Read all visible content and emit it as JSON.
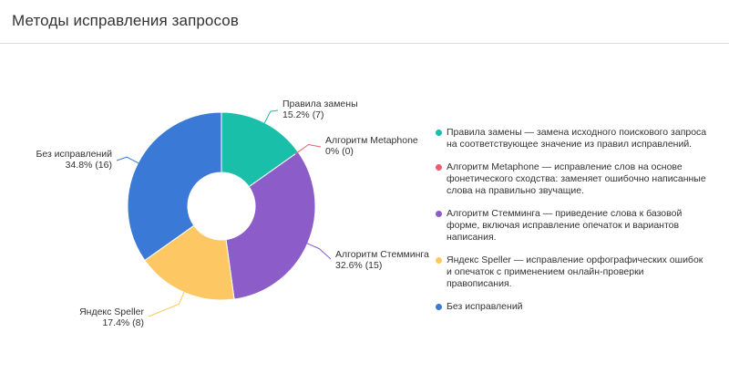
{
  "header": {
    "title": "Методы исправления запросов"
  },
  "chart_data": {
    "type": "pie",
    "donut": true,
    "categories": [
      "Правила замены",
      "Алгоритм Metaphone",
      "Алгоритм Стемминга",
      "Яндекс Speller",
      "Без исправлений"
    ],
    "values": [
      7,
      0,
      15,
      8,
      16
    ],
    "percent_labels": [
      "15.2% (7)",
      "0% (0)",
      "32.6% (15)",
      "17.4% (8)",
      "34.8% (16)"
    ],
    "colors": [
      "#1abfa9",
      "#ef5a6e",
      "#8c5cc8",
      "#fdc864",
      "#3a7ad6"
    ],
    "legend_position": "right",
    "legend": [
      "Правила замены — замена исходного поискового запроса на соответствующее значение из правил исправлений.",
      "Алгоритм Metaphone — исправление слов на основе фонетического сходства: заменяет ошибочно написанные слова на правильно звучащие.",
      "Алгоритм Стемминга — приведение слова к базовой форме, включая исправление опечаток и вариантов написания.",
      "Яндекс Speller — исправление орфографических ошибок и опечаток с применением онлайн-проверки правописания.",
      "Без исправлений"
    ]
  }
}
